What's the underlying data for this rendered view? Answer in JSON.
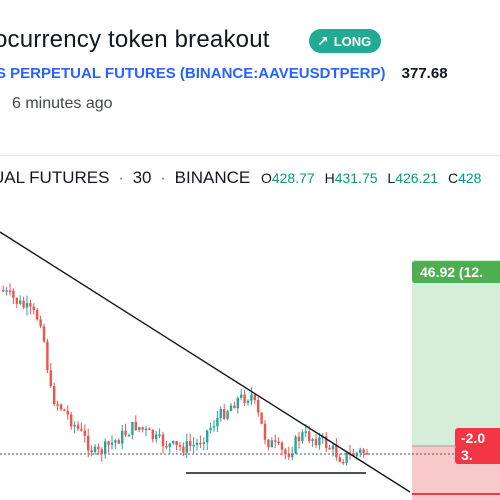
{
  "idea": {
    "title": "ocurrency token breakout",
    "direction_label": "LONG",
    "direction_icon": "arrow-up-right-icon",
    "accent_color": "#22ab94"
  },
  "symbol": {
    "name_text": "S PERPETUAL FUTURES (BINANCE:AAVEUSDTPERP)",
    "price": "377.68"
  },
  "published": "6 minutes ago",
  "chart_header": {
    "name": "UAL FUTURES",
    "interval": "30",
    "exchange": "BINANCE",
    "open_label": "O",
    "open": "428.77",
    "high_label": "H",
    "high": "431.75",
    "low_label": "L",
    "low": "426.21",
    "close_label": "C",
    "close": "428"
  },
  "position": {
    "profit_label": "46.92 (12.",
    "loss_label_a": "-2.0",
    "loss_label_b": "3.",
    "profit_color": "#4caf50",
    "loss_color": "#f23645"
  },
  "colors": {
    "up": "#26a69a",
    "down": "#ef5350",
    "link": "#2962ff"
  }
}
